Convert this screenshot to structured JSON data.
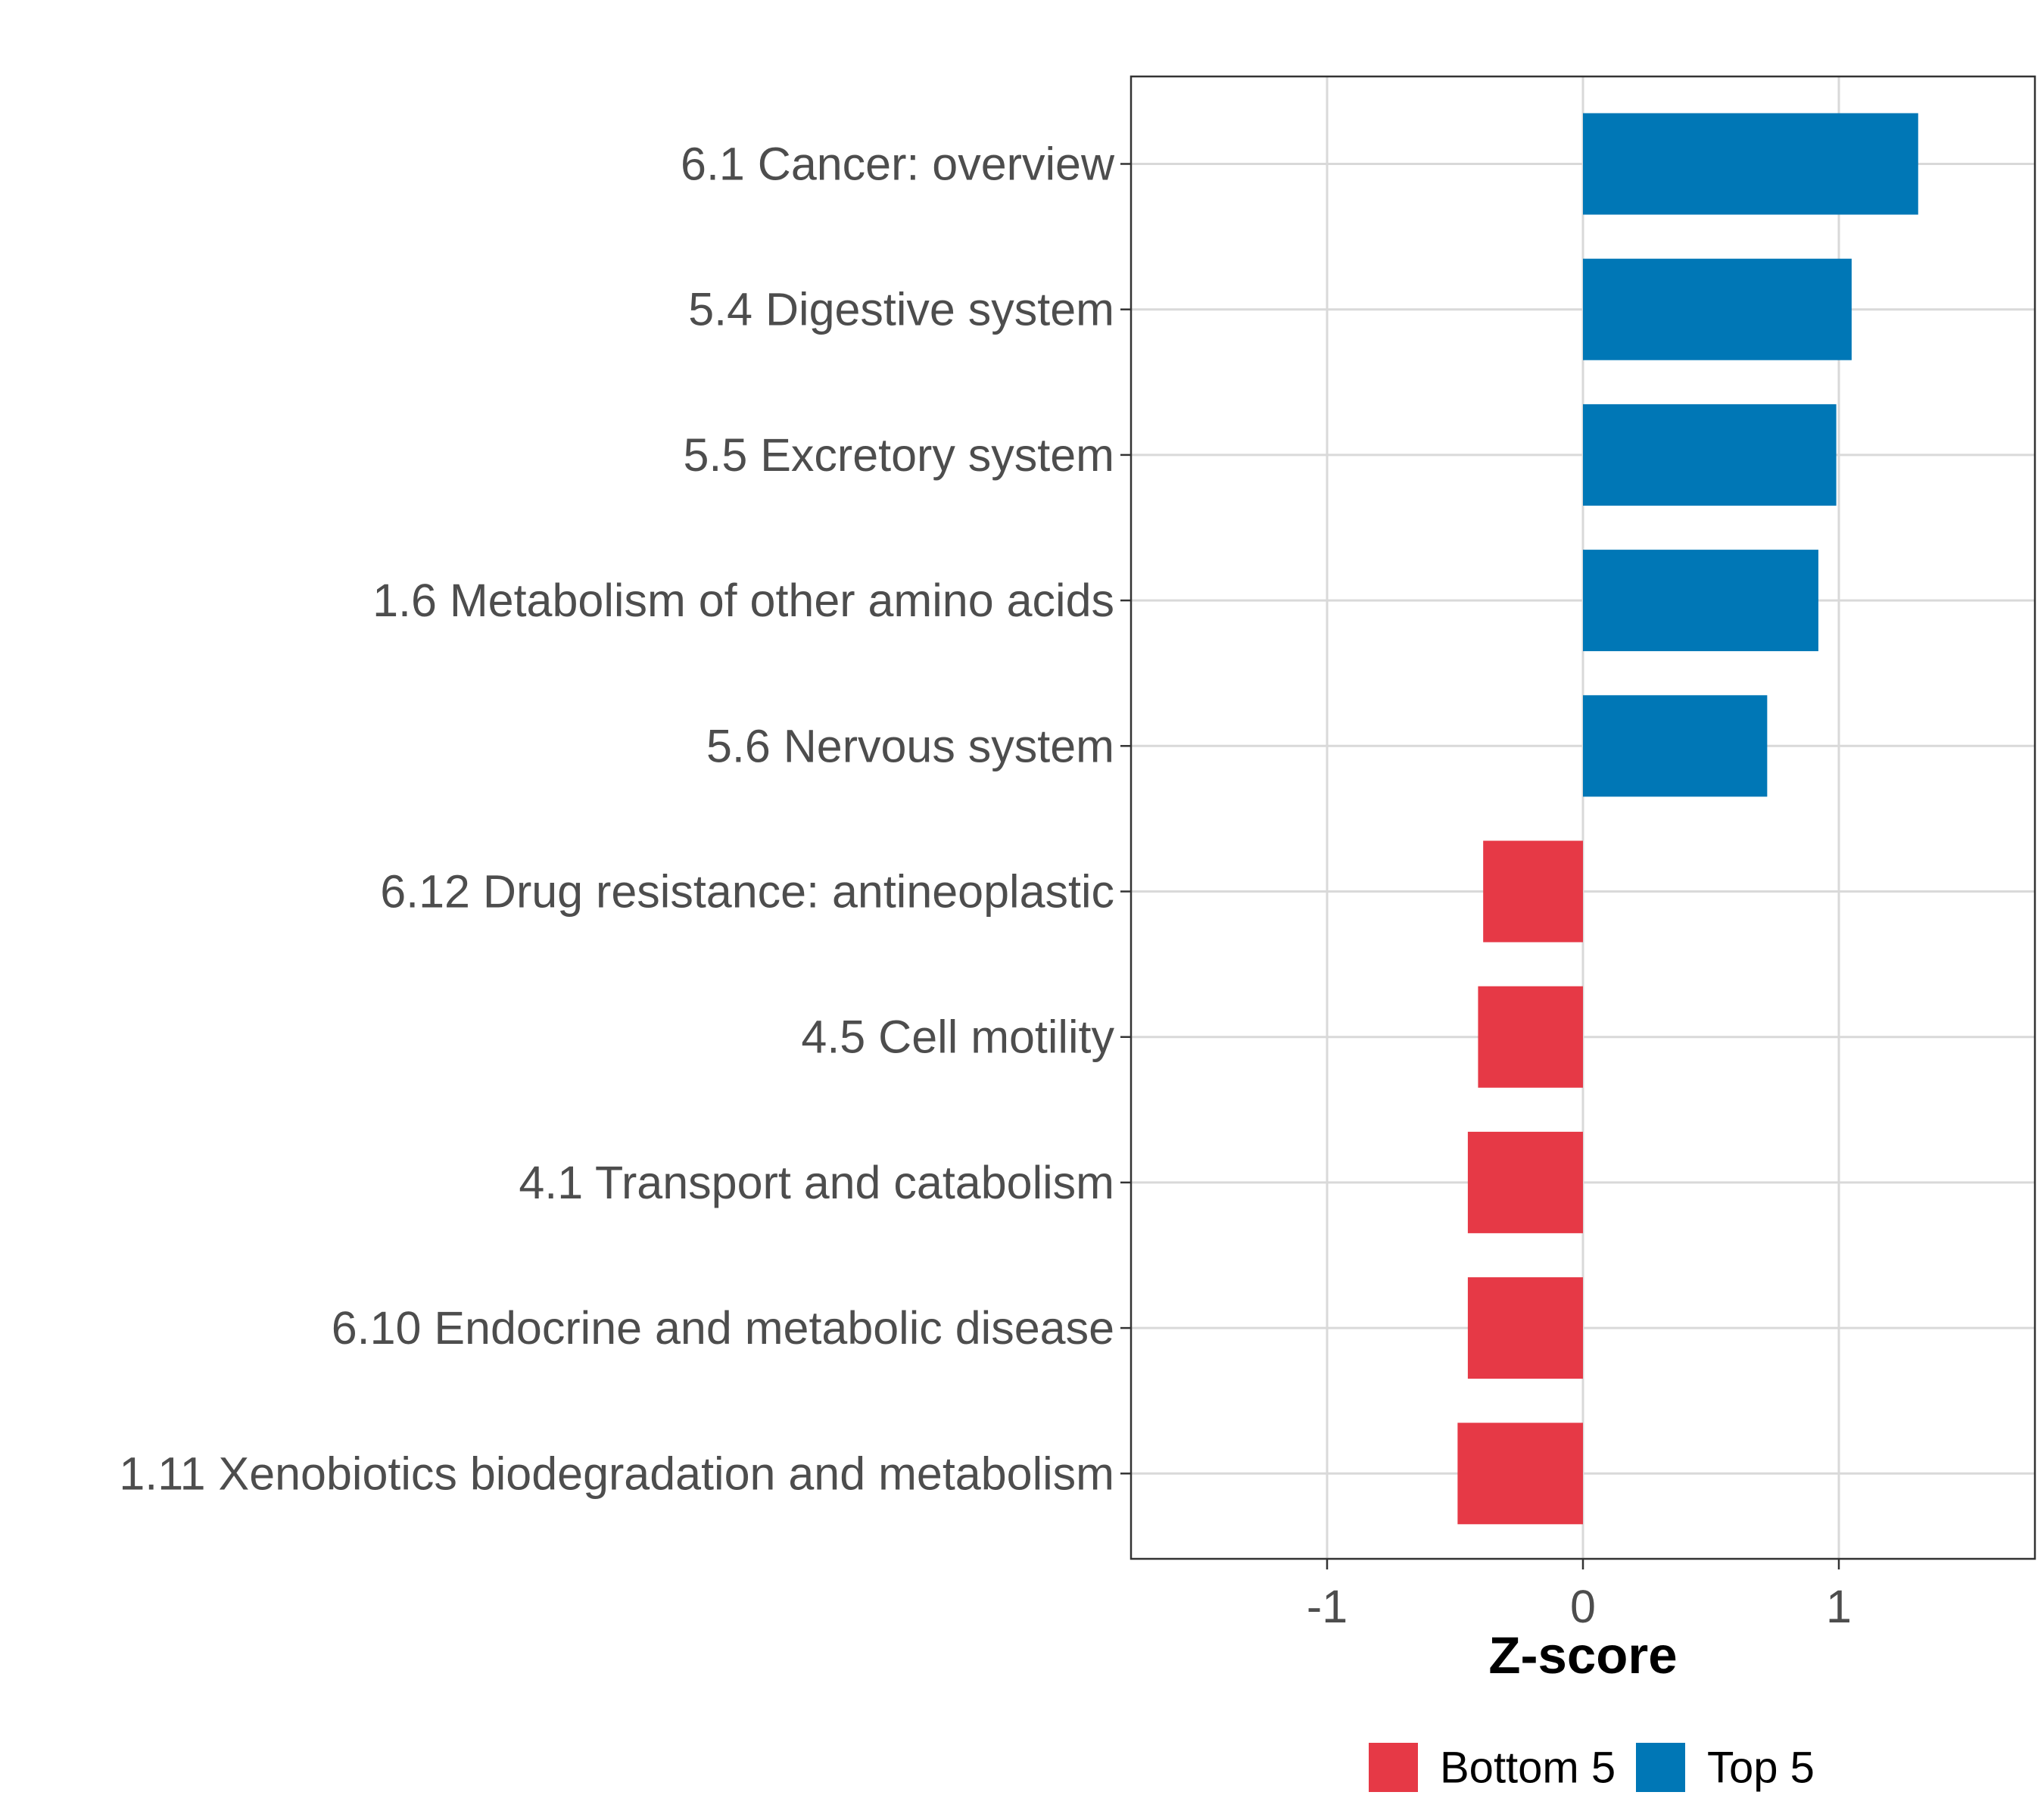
{
  "chart_data": {
    "type": "bar",
    "orientation": "horizontal",
    "title": "",
    "xlabel": "Z-score",
    "ylabel": "",
    "xlim": [
      -1.77,
      1.77
    ],
    "xticks": [
      -1,
      0,
      1
    ],
    "xtick_labels": [
      "-1",
      "0",
      "1"
    ],
    "grid": true,
    "legend_position": "bottom",
    "categories": [
      "6.1 Cancer: overview",
      "5.4 Digestive system",
      "5.5 Excretory system",
      "1.6 Metabolism of other amino acids",
      "5.6 Nervous system",
      "6.12 Drug resistance: antineoplastic",
      "4.5 Cell motility",
      "4.1 Transport and catabolism",
      "6.10 Endocrine and metabolic disease",
      "1.11 Xenobiotics biodegradation and metabolism"
    ],
    "values": [
      1.31,
      1.05,
      0.99,
      0.92,
      0.72,
      -0.39,
      -0.41,
      -0.45,
      -0.45,
      -0.49
    ],
    "groups": [
      "Top 5",
      "Top 5",
      "Top 5",
      "Top 5",
      "Top 5",
      "Bottom 5",
      "Bottom 5",
      "Bottom 5",
      "Bottom 5",
      "Bottom 5"
    ],
    "legend": [
      {
        "name": "Bottom 5",
        "color": "#e63946"
      },
      {
        "name": "Top 5",
        "color": "#0077b6"
      }
    ]
  }
}
